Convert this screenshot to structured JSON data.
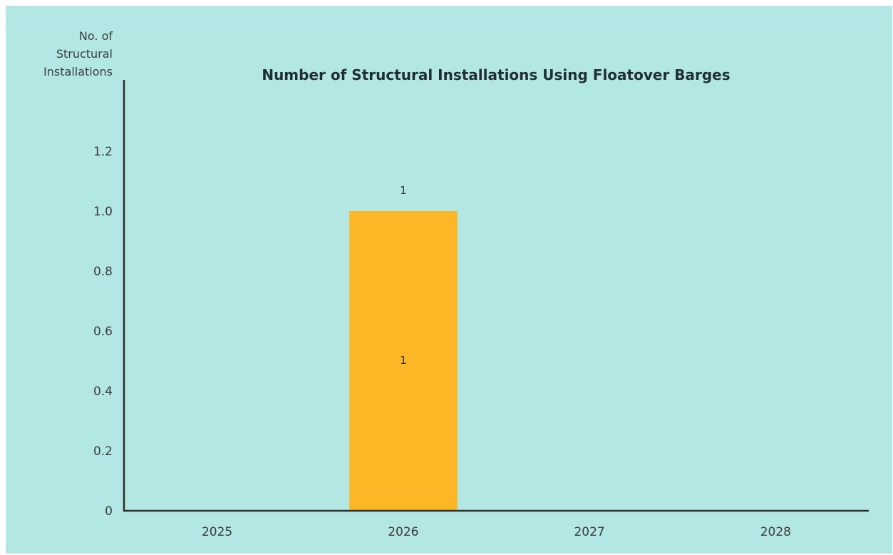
{
  "chart_data": {
    "type": "bar",
    "title": "Number of Structural Installations Using Floatover Barges",
    "xlabel": "",
    "ylabel_lines": [
      "No. of",
      "Structural",
      "Installations"
    ],
    "categories": [
      "2025",
      "2026",
      "2027",
      "2028"
    ],
    "values": [
      0,
      1,
      0,
      0
    ],
    "ylim": [
      0,
      1.4
    ],
    "yticks": [
      "0",
      "0.2",
      "0.4",
      "0.6",
      "0.8",
      "1.0",
      "1.2"
    ],
    "ytick_values": [
      0,
      0.2,
      0.4,
      0.6,
      0.8,
      1.0,
      1.2
    ],
    "data_labels": [
      {
        "category": "2026",
        "outside": "1",
        "inside": "1"
      }
    ],
    "grid": false,
    "legend": "none",
    "colors": {
      "background": "#b3e7e3",
      "bar": "#fbb726",
      "axis": "#2e2e2e"
    }
  }
}
